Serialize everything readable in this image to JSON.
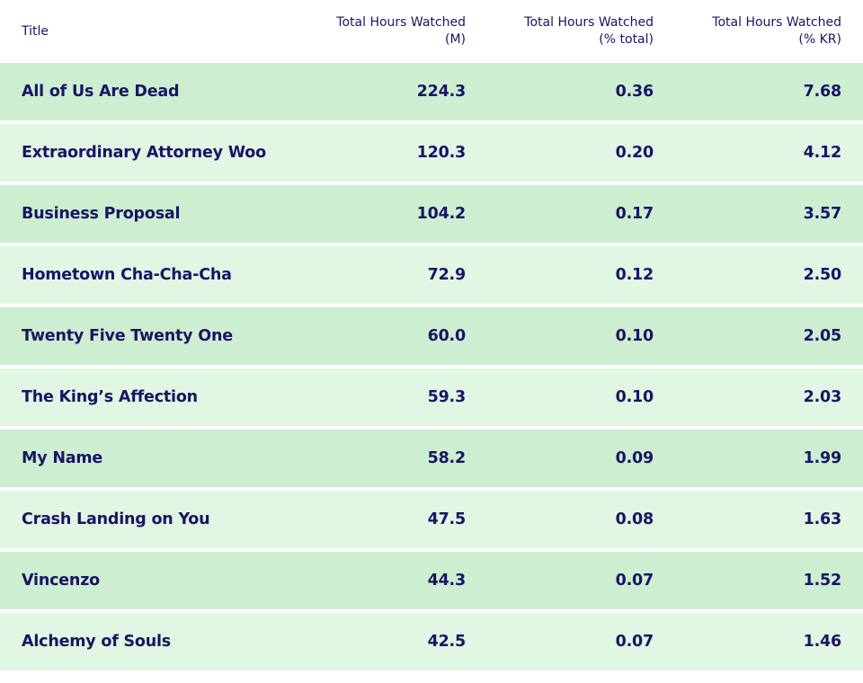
{
  "chart_data": {
    "type": "table",
    "columns": [
      "Title",
      "Total Hours Watched\n(M)",
      "Total Hours Watched\n(% total)",
      "Total Hours Watched\n(% KR)"
    ],
    "header": {
      "title": "Title",
      "col1_line1": "Total Hours Watched",
      "col1_line2": "(M)",
      "col2_line1": "Total Hours Watched",
      "col2_line2": "(% total)",
      "col3_line1": "Total Hours Watched",
      "col3_line2": "(% KR)"
    },
    "rows": [
      {
        "title": "All of Us Are Dead",
        "hours_m": "224.3",
        "pct_total": "0.36",
        "pct_kr": "7.68"
      },
      {
        "title": "Extraordinary Attorney Woo",
        "hours_m": "120.3",
        "pct_total": "0.20",
        "pct_kr": "4.12"
      },
      {
        "title": "Business Proposal",
        "hours_m": "104.2",
        "pct_total": "0.17",
        "pct_kr": "3.57"
      },
      {
        "title": "Hometown Cha-Cha-Cha",
        "hours_m": "72.9",
        "pct_total": "0.12",
        "pct_kr": "2.50"
      },
      {
        "title": "Twenty Five Twenty One",
        "hours_m": "60.0",
        "pct_total": "0.10",
        "pct_kr": "2.05"
      },
      {
        "title": "The King’s Affection",
        "hours_m": "59.3",
        "pct_total": "0.10",
        "pct_kr": "2.03"
      },
      {
        "title": "My Name",
        "hours_m": "58.2",
        "pct_total": "0.09",
        "pct_kr": "1.99"
      },
      {
        "title": "Crash Landing on You",
        "hours_m": "47.5",
        "pct_total": "0.08",
        "pct_kr": "1.63"
      },
      {
        "title": "Vincenzo",
        "hours_m": "44.3",
        "pct_total": "0.07",
        "pct_kr": "1.52"
      },
      {
        "title": "Alchemy of Souls",
        "hours_m": "42.5",
        "pct_total": "0.07",
        "pct_kr": "1.46"
      }
    ]
  },
  "colors": {
    "text": "#1a1464",
    "row_odd": "#cdeed1",
    "row_even": "#e2f6e4",
    "background": "#ffffff"
  }
}
